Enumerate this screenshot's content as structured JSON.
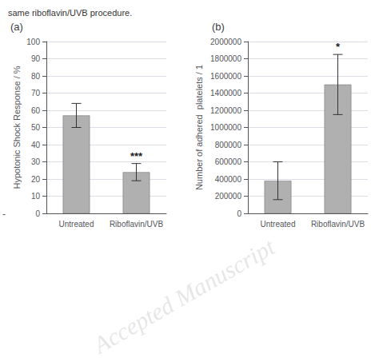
{
  "title": "same riboflavin/UVB procedure.",
  "annotations": [
    {
      "text": "-"
    },
    {
      "text": "Accepted Manuscript",
      "color": "#b8b8b8"
    }
  ],
  "chart_data": [
    {
      "type": "bar",
      "title": "(a)",
      "categories": [
        "Untreated",
        "Riboflavin/UVB"
      ],
      "values": [
        57,
        24
      ],
      "errors": [
        7,
        5
      ],
      "color": "#b0b0b0",
      "y_label": "Hypotonic Shock Response / %",
      "ylim": [
        0,
        100
      ],
      "yticks": [
        0,
        10,
        20,
        30,
        40,
        50,
        60,
        70,
        80,
        90,
        100
      ],
      "annotations": [
        {
          "category": "Riboflavin/UVB",
          "text": "***"
        }
      ]
    },
    {
      "type": "bar",
      "title": "(b)",
      "categories": [
        "Untreated",
        "Riboflavin/UVB"
      ],
      "values": [
        380000,
        1500000
      ],
      "errors": [
        220000,
        350000
      ],
      "color": "#b0b0b0",
      "y_label": "Number of adhered  platelets / 1",
      "ylim": [
        0,
        2000000
      ],
      "yticks": [
        0,
        200000,
        400000,
        600000,
        800000,
        1000000,
        1200000,
        1400000,
        1600000,
        1800000,
        2000000
      ],
      "annotations": [
        {
          "category": "Riboflavin/UVB",
          "text": "*"
        }
      ]
    }
  ]
}
